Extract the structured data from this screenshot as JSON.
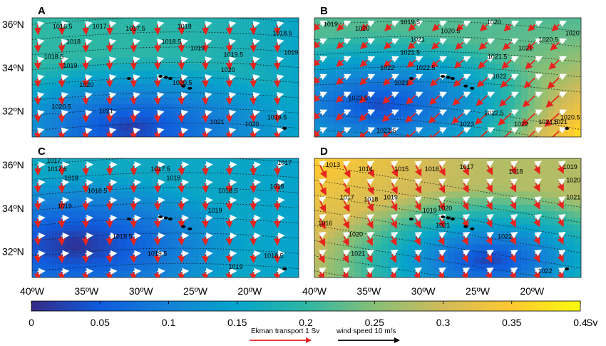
{
  "chart_data": {
    "type": "heatmap",
    "description_free": true,
    "x_ticks": [
      "40ºW",
      "35ºW",
      "30ºW",
      "25ºW",
      "20ºW"
    ],
    "y_ticks": [
      "36ºN",
      "34ºN",
      "32ºN"
    ],
    "xlim": [
      -40,
      -15.5
    ],
    "ylim": [
      30.8,
      36.3
    ],
    "colorbar": {
      "ticks": [
        "0",
        "0.05",
        "0.1",
        "0.15",
        "0.2",
        "0.25",
        "0.3",
        "0.35",
        "0.4"
      ],
      "unit": "Sv",
      "range": [
        0,
        0.4
      ]
    },
    "legend": {
      "ekman": "Ekman transport 1 Sv",
      "wind": "wind speed 10 m/s"
    },
    "panels": [
      {
        "label": "A",
        "contours": [
          {
            "text": "1016.5",
            "lon": -37.2,
            "lat": 35.8
          },
          {
            "text": "1017",
            "lon": -33.8,
            "lat": 35.8
          },
          {
            "text": "1017.5",
            "lon": -30.5,
            "lat": 35.7
          },
          {
            "text": "1018",
            "lon": -26.0,
            "lat": 35.8
          },
          {
            "text": "1018.5",
            "lon": -17.0,
            "lat": 35.5
          },
          {
            "text": "1018",
            "lon": -36.2,
            "lat": 35.1
          },
          {
            "text": "1018.5",
            "lon": -27.2,
            "lat": 35.1
          },
          {
            "text": "1019",
            "lon": -24.8,
            "lat": 34.8
          },
          {
            "text": "1019",
            "lon": -16.2,
            "lat": 34.6
          },
          {
            "text": "1018.5",
            "lon": -38.0,
            "lat": 34.4
          },
          {
            "text": "1019",
            "lon": -36.5,
            "lat": 34.0
          },
          {
            "text": "1019.5",
            "lon": -21.5,
            "lat": 34.5
          },
          {
            "text": "1020",
            "lon": -22.0,
            "lat": 33.8
          },
          {
            "text": "1020",
            "lon": -35.0,
            "lat": 33.1
          },
          {
            "text": "1020.5",
            "lon": -26.2,
            "lat": 33.2
          },
          {
            "text": "1020.5",
            "lon": -37.3,
            "lat": 32.1
          },
          {
            "text": "1021",
            "lon": -33.2,
            "lat": 31.9
          },
          {
            "text": "1021",
            "lon": -23.0,
            "lat": 31.4
          },
          {
            "text": "1020",
            "lon": -19.8,
            "lat": 31.3
          },
          {
            "text": "1019.5",
            "lon": -17.5,
            "lat": 31.6
          }
        ],
        "field": {
          "cx": -31,
          "cy": 31.2,
          "vmin": 0.02,
          "vmax": 0.2,
          "corner": 0.12
        },
        "ekman": {
          "u": 0.05,
          "v": -0.75,
          "grow": 0.2
        },
        "wind": {
          "u": 0.7,
          "v": 0.15
        }
      },
      {
        "label": "B",
        "contours": [
          {
            "text": "1019",
            "lon": -38.5,
            "lat": 35.9
          },
          {
            "text": "1020",
            "lon": -35.6,
            "lat": 35.7
          },
          {
            "text": "1019.5",
            "lon": -31.2,
            "lat": 36.0
          },
          {
            "text": "1020",
            "lon": -23.5,
            "lat": 36.0
          },
          {
            "text": "1020",
            "lon": -16.3,
            "lat": 35.5
          },
          {
            "text": "1020.5",
            "lon": -27.5,
            "lat": 35.6
          },
          {
            "text": "1020.5",
            "lon": -18.5,
            "lat": 35.2
          },
          {
            "text": "1021",
            "lon": -30.5,
            "lat": 35.2
          },
          {
            "text": "1021",
            "lon": -20.6,
            "lat": 34.8
          },
          {
            "text": "1021.5",
            "lon": -31.2,
            "lat": 34.6
          },
          {
            "text": "1021.5",
            "lon": -23.2,
            "lat": 34.4
          },
          {
            "text": "1022",
            "lon": -33.3,
            "lat": 33.9
          },
          {
            "text": "1022",
            "lon": -23.0,
            "lat": 33.5
          },
          {
            "text": "1022.5",
            "lon": -29.8,
            "lat": 33.9
          },
          {
            "text": "1023",
            "lon": -32.0,
            "lat": 33.2
          },
          {
            "text": "1023.5",
            "lon": -36.0,
            "lat": 32.5
          },
          {
            "text": "1023",
            "lon": -26.0,
            "lat": 31.3
          },
          {
            "text": "1022.5",
            "lon": -33.4,
            "lat": 31.0
          },
          {
            "text": "1022.5",
            "lon": -23.5,
            "lat": 31.8
          },
          {
            "text": "1022",
            "lon": -21.0,
            "lat": 31.3
          },
          {
            "text": "1021.5",
            "lon": -18.5,
            "lat": 31.4
          },
          {
            "text": "1021",
            "lon": -17.4,
            "lat": 31.4
          },
          {
            "text": "1020.5",
            "lon": -16.5,
            "lat": 31.6
          }
        ],
        "field": {
          "cx": -34,
          "cy": 32.3,
          "vmin": 0.03,
          "vmax": 0.22,
          "corner": 0.38
        },
        "ekman": {
          "u": -0.6,
          "v": -0.55,
          "grow": 0.9
        },
        "wind": {
          "u": 0.75,
          "v": 0.35
        }
      },
      {
        "label": "C",
        "contours": [
          {
            "text": "1017",
            "lon": -38.0,
            "lat": 36.1
          },
          {
            "text": "1017.5",
            "lon": -37.7,
            "lat": 35.7
          },
          {
            "text": "1017.5",
            "lon": -28.2,
            "lat": 35.7
          },
          {
            "text": "1017",
            "lon": -16.8,
            "lat": 36.0
          },
          {
            "text": "1018",
            "lon": -36.4,
            "lat": 35.3
          },
          {
            "text": "1018",
            "lon": -27.0,
            "lat": 35.3
          },
          {
            "text": "1018.5",
            "lon": -34.0,
            "lat": 34.7
          },
          {
            "text": "1018.5",
            "lon": -22.0,
            "lat": 34.7
          },
          {
            "text": "1018",
            "lon": -17.5,
            "lat": 34.9
          },
          {
            "text": "1019",
            "lon": -37.0,
            "lat": 34.0
          },
          {
            "text": "1019",
            "lon": -23.2,
            "lat": 33.8
          },
          {
            "text": "1019.5",
            "lon": -31.7,
            "lat": 32.6
          },
          {
            "text": "1019.5",
            "lon": -28.5,
            "lat": 31.8
          },
          {
            "text": "1019",
            "lon": -21.3,
            "lat": 31.2
          },
          {
            "text": "1018.5",
            "lon": -17.8,
            "lat": 31.7
          }
        ],
        "field": {
          "cx": -36,
          "cy": 32.3,
          "vmin": 0.005,
          "vmax": 0.16,
          "corner": 0.14
        },
        "ekman": {
          "u": 0.05,
          "v": -0.75,
          "grow": 0.2
        },
        "wind": {
          "u": 0.8,
          "v": 0.05
        }
      },
      {
        "label": "D",
        "contours": [
          {
            "text": "1013",
            "lon": -38.3,
            "lat": 35.9
          },
          {
            "text": "1014",
            "lon": -35.3,
            "lat": 35.7
          },
          {
            "text": "1015",
            "lon": -32.0,
            "lat": 35.7
          },
          {
            "text": "1016",
            "lon": -29.2,
            "lat": 35.7
          },
          {
            "text": "1017",
            "lon": -26.0,
            "lat": 35.8
          },
          {
            "text": "1018",
            "lon": -21.5,
            "lat": 35.6
          },
          {
            "text": "1019",
            "lon": -16.5,
            "lat": 35.8
          },
          {
            "text": "1020",
            "lon": -16.2,
            "lat": 35.2
          },
          {
            "text": "1021",
            "lon": -16.2,
            "lat": 34.4
          },
          {
            "text": "1017",
            "lon": -37.0,
            "lat": 34.4
          },
          {
            "text": "1018",
            "lon": -34.8,
            "lat": 34.3
          },
          {
            "text": "1019",
            "lon": -33.0,
            "lat": 34.4
          },
          {
            "text": "1019",
            "lon": -29.4,
            "lat": 33.8
          },
          {
            "text": "1020",
            "lon": -28.0,
            "lat": 33.9
          },
          {
            "text": "1016",
            "lon": -39.0,
            "lat": 33.2
          },
          {
            "text": "1020",
            "lon": -36.2,
            "lat": 32.7
          },
          {
            "text": "1021",
            "lon": -28.2,
            "lat": 33.1
          },
          {
            "text": "1021",
            "lon": -36.0,
            "lat": 31.8
          },
          {
            "text": "1022",
            "lon": -22.5,
            "lat": 32.6
          },
          {
            "text": "1022",
            "lon": -18.8,
            "lat": 31.0
          }
        ],
        "field": {
          "cx": -24,
          "cy": 31.6,
          "vmin": 0.02,
          "vmax": 0.28,
          "corner": 0.36
        },
        "ekman": {
          "u": 0.35,
          "v": -0.7,
          "grow": 0.6
        },
        "wind": {
          "u": 0.65,
          "v": 0.4
        }
      }
    ]
  }
}
